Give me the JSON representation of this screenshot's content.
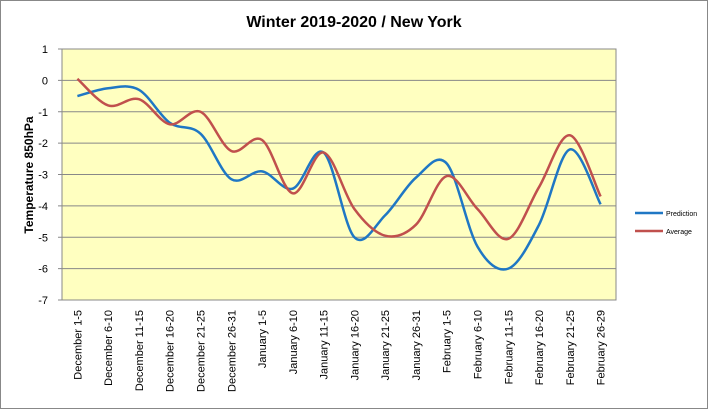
{
  "chart_data": {
    "type": "line",
    "title": "Winter 2019-2020 / New York",
    "y_label": "Temperature 850hPa",
    "categories": [
      "December 1-5",
      "December 6-10",
      "December 11-15",
      "December 16-20",
      "December 21-25",
      "December 26-31",
      "January 1-5",
      "January 6-10",
      "January 11-15",
      "January 16-20",
      "January 21-25",
      "January 26-31",
      "February 1-5",
      "February 6-10",
      "February 11-15",
      "February 16-20",
      "February 21-25",
      "February 26-29"
    ],
    "series": [
      {
        "name": "Prediction",
        "color": "#1f77c4",
        "values": [
          -0.5,
          -0.25,
          -0.3,
          -1.35,
          -1.7,
          -3.15,
          -2.9,
          -3.45,
          -2.3,
          -5.0,
          -4.3,
          -3.1,
          -2.65,
          -5.3,
          -6.0,
          -4.6,
          -2.2,
          -3.95
        ]
      },
      {
        "name": "Average",
        "color": "#c0504d",
        "values": [
          0.05,
          -0.8,
          -0.6,
          -1.4,
          -1.0,
          -2.25,
          -1.9,
          -3.6,
          -2.3,
          -4.1,
          -4.95,
          -4.6,
          -3.05,
          -4.1,
          -5.05,
          -3.4,
          -1.75,
          -3.7
        ]
      }
    ],
    "ylim": [
      -7,
      1
    ],
    "yticks": [
      -7,
      -6,
      -5,
      -4,
      -3,
      -2,
      -1,
      0,
      1
    ],
    "grid": true,
    "legend": "right"
  }
}
